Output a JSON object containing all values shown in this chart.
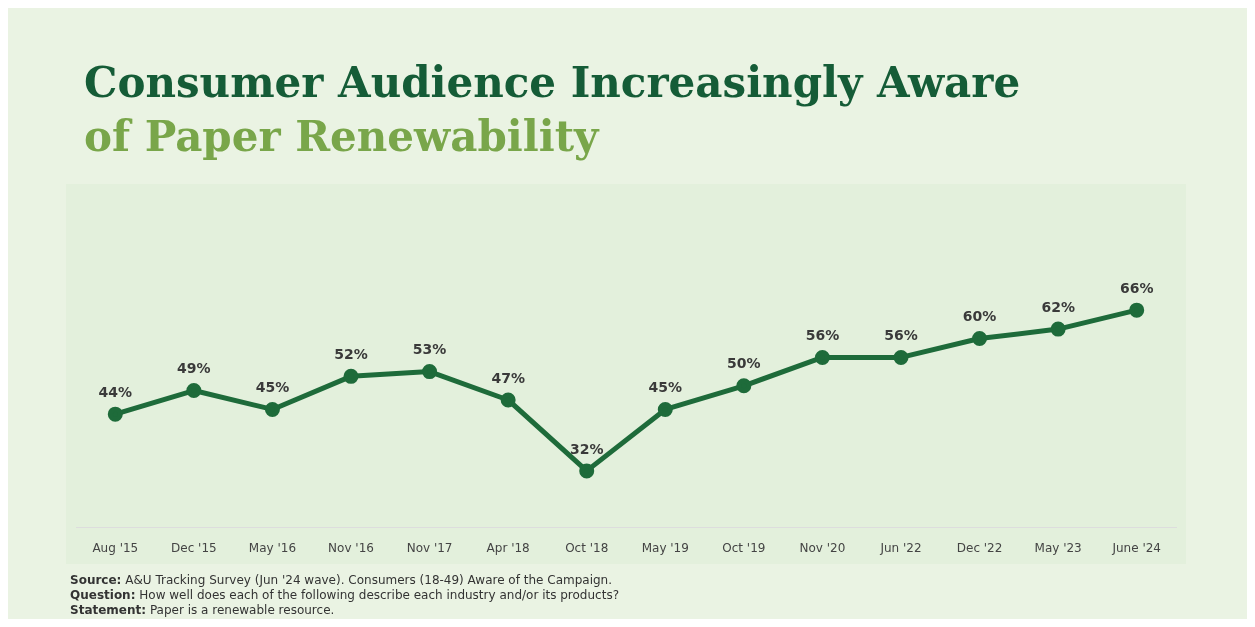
{
  "chart_data": {
    "type": "line",
    "title": "Consumer Audience Increasingly Aware",
    "subtitle": "of Paper Renewability",
    "categories": [
      "Aug '15",
      "Dec '15",
      "May '16",
      "Nov '16",
      "Nov '17",
      "Apr '18",
      "Oct '18",
      "May '19",
      "Oct '19",
      "Nov '20",
      "Jun '22",
      "Dec '22",
      "May '23",
      "June '24"
    ],
    "series": [
      {
        "color": "#1e6b3a",
        "values": [
          44,
          49,
          45,
          52,
          53,
          47,
          32,
          45,
          50,
          56,
          56,
          60,
          62,
          66
        ],
        "value_labels": [
          "44%",
          "49%",
          "45%",
          "52%",
          "53%",
          "47%",
          "32%",
          "45%",
          "50%",
          "56%",
          "56%",
          "60%",
          "62%",
          "66%"
        ]
      }
    ],
    "marker": "circle",
    "line_style": "solid",
    "grid": false,
    "legend": false,
    "annotations": [
      "Source: A&U Tracking Survey (Jun '24 wave). Consumers (18-49) Aware of the Campaign.",
      "Question: How well does each of the following describe each industry and/or its products?",
      "Statement: Paper is a renewable resource."
    ]
  }
}
